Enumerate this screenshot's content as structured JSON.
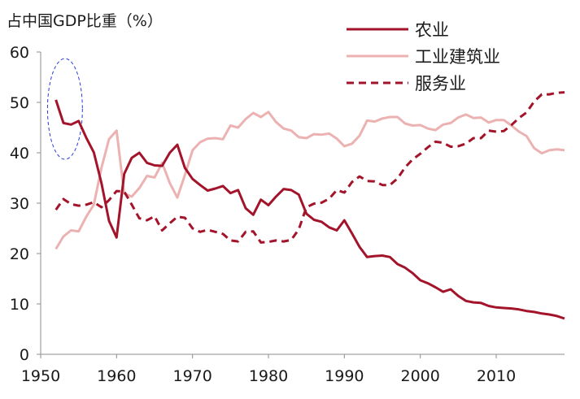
{
  "chart_data": {
    "type": "line",
    "unit_label": "占中国GDP比重（%）",
    "xlim": [
      1950,
      2019
    ],
    "ylim": [
      0,
      60
    ],
    "x_ticks": [
      1950,
      1960,
      1970,
      1980,
      1990,
      2000,
      2010
    ],
    "y_ticks": [
      0,
      10,
      20,
      30,
      40,
      50,
      60
    ],
    "grid": false,
    "legend_position": "top-right",
    "highlight_ellipse": {
      "x_center": 1953.2,
      "y_center": 48.7,
      "x_radius": 2.3,
      "y_radius": 10.0,
      "color": "#2a3bd6"
    },
    "series": [
      {
        "name": "农业",
        "color": "#a3142b",
        "dash": "solid",
        "x": [
          1952,
          1953,
          1954,
          1955,
          1956,
          1957,
          1958,
          1959,
          1960,
          1961,
          1962,
          1963,
          1964,
          1965,
          1966,
          1967,
          1968,
          1969,
          1970,
          1971,
          1972,
          1973,
          1974,
          1975,
          1976,
          1977,
          1978,
          1979,
          1980,
          1981,
          1982,
          1983,
          1984,
          1985,
          1986,
          1987,
          1988,
          1989,
          1990,
          1991,
          1992,
          1993,
          1994,
          1995,
          1996,
          1997,
          1998,
          1999,
          2000,
          2001,
          2002,
          2003,
          2004,
          2005,
          2006,
          2007,
          2008,
          2009,
          2010,
          2011,
          2012,
          2013,
          2014,
          2015,
          2016,
          2017,
          2018,
          2019
        ],
        "values": [
          50.5,
          45.9,
          45.6,
          46.3,
          43.0,
          40.1,
          34.0,
          26.5,
          23.2,
          35.8,
          39.0,
          40.0,
          38.0,
          37.5,
          37.4,
          40.0,
          41.6,
          37.0,
          34.8,
          33.6,
          32.5,
          32.9,
          33.4,
          32.0,
          32.6,
          29.0,
          27.7,
          30.7,
          29.6,
          31.3,
          32.8,
          32.6,
          31.7,
          27.9,
          26.7,
          26.3,
          25.2,
          24.6,
          26.6,
          24.0,
          21.3,
          19.3,
          19.5,
          19.6,
          19.3,
          17.9,
          17.2,
          16.1,
          14.7,
          14.1,
          13.3,
          12.4,
          12.9,
          11.6,
          10.6,
          10.3,
          10.2,
          9.6,
          9.3,
          9.2,
          9.1,
          8.9,
          8.6,
          8.4,
          8.1,
          7.9,
          7.6,
          7.1
        ]
      },
      {
        "name": "工业建筑业",
        "color": "#ecb2b2",
        "dash": "solid",
        "x": [
          1952,
          1953,
          1954,
          1955,
          1956,
          1957,
          1958,
          1959,
          1960,
          1961,
          1962,
          1963,
          1964,
          1965,
          1966,
          1967,
          1968,
          1969,
          1970,
          1971,
          1972,
          1973,
          1974,
          1975,
          1976,
          1977,
          1978,
          1979,
          1980,
          1981,
          1982,
          1983,
          1984,
          1985,
          1986,
          1987,
          1988,
          1989,
          1990,
          1991,
          1992,
          1993,
          1994,
          1995,
          1996,
          1997,
          1998,
          1999,
          2000,
          2001,
          2002,
          2003,
          2004,
          2005,
          2006,
          2007,
          2008,
          2009,
          2010,
          2011,
          2012,
          2013,
          2014,
          2015,
          2016,
          2017,
          2018,
          2019
        ],
        "values": [
          20.9,
          23.4,
          24.6,
          24.4,
          27.3,
          29.7,
          37.0,
          42.7,
          44.4,
          31.9,
          31.3,
          33.0,
          35.4,
          35.1,
          38.0,
          34.0,
          31.1,
          35.6,
          40.5,
          42.1,
          42.8,
          42.9,
          42.7,
          45.4,
          45.0,
          46.7,
          47.9,
          47.1,
          48.1,
          46.1,
          44.8,
          44.4,
          43.1,
          42.9,
          43.7,
          43.6,
          43.8,
          42.8,
          41.3,
          41.8,
          43.4,
          46.4,
          46.2,
          46.8,
          47.1,
          47.1,
          45.8,
          45.4,
          45.5,
          44.8,
          44.5,
          45.6,
          45.9,
          47.0,
          47.6,
          46.9,
          47.0,
          46.0,
          46.5,
          46.5,
          45.4,
          44.2,
          43.3,
          40.9,
          39.9,
          40.5,
          40.7,
          40.5
        ]
      },
      {
        "name": "服务业",
        "color": "#a3142b",
        "dash": "dashed",
        "x": [
          1952,
          1953,
          1954,
          1955,
          1956,
          1957,
          1958,
          1959,
          1960,
          1961,
          1962,
          1963,
          1964,
          1965,
          1966,
          1967,
          1968,
          1969,
          1970,
          1971,
          1972,
          1973,
          1974,
          1975,
          1976,
          1977,
          1978,
          1979,
          1980,
          1981,
          1982,
          1983,
          1984,
          1985,
          1986,
          1987,
          1988,
          1989,
          1990,
          1991,
          1992,
          1993,
          1994,
          1995,
          1996,
          1997,
          1998,
          1999,
          2000,
          2001,
          2002,
          2003,
          2004,
          2005,
          2006,
          2007,
          2008,
          2009,
          2010,
          2011,
          2012,
          2013,
          2014,
          2015,
          2016,
          2017,
          2018,
          2019
        ],
        "values": [
          28.7,
          30.8,
          29.8,
          29.5,
          29.7,
          30.2,
          29.2,
          30.6,
          32.4,
          32.3,
          29.7,
          27.0,
          26.6,
          27.4,
          24.6,
          26.0,
          27.3,
          27.1,
          25.0,
          24.3,
          24.7,
          24.3,
          23.9,
          22.6,
          22.4,
          24.3,
          24.4,
          22.2,
          22.3,
          22.6,
          22.4,
          22.7,
          24.8,
          29.2,
          29.9,
          30.1,
          30.9,
          32.6,
          32.1,
          34.2,
          35.3,
          34.4,
          34.3,
          33.6,
          33.6,
          34.9,
          37.1,
          38.7,
          39.8,
          41.1,
          42.2,
          42.0,
          41.2,
          41.3,
          41.8,
          42.9,
          42.9,
          44.4,
          44.2,
          44.3,
          45.5,
          46.9,
          48.0,
          50.2,
          51.6,
          51.6,
          51.9,
          52.0
        ]
      }
    ]
  }
}
